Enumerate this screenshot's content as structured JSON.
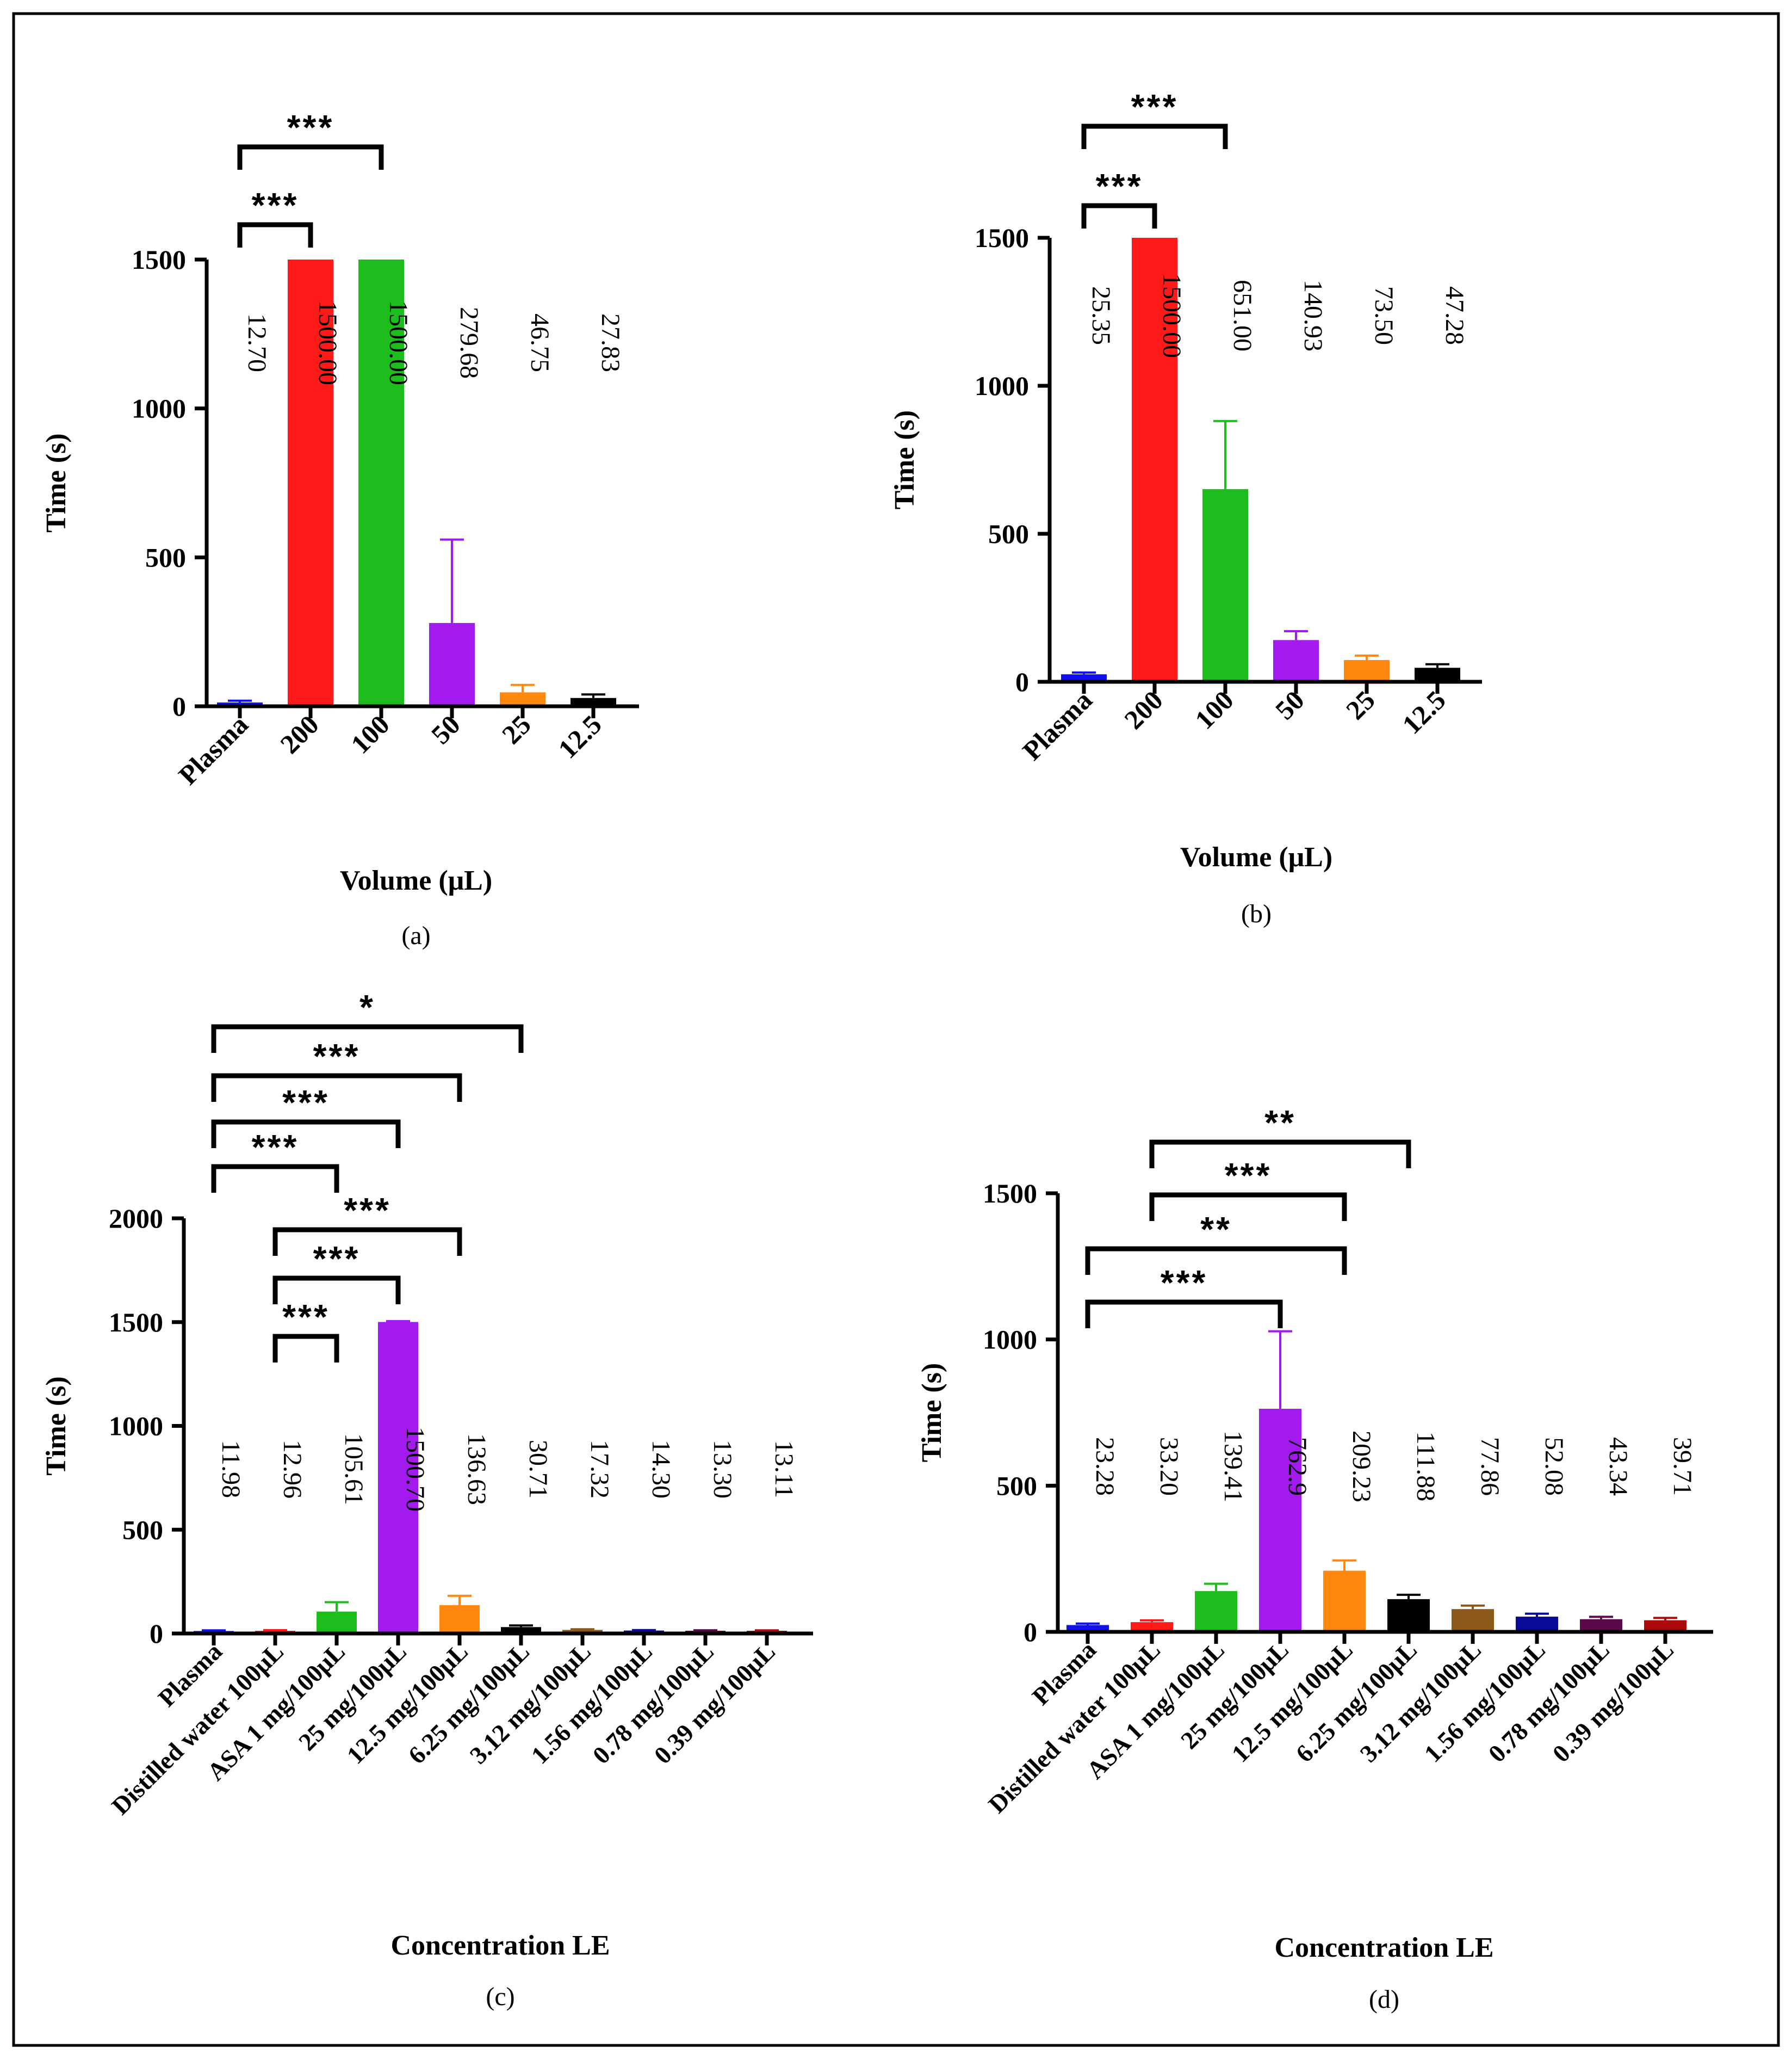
{
  "chart_data": [
    {
      "type": "bar",
      "panel_label": "(a)",
      "xlabel": "Volume (μL)",
      "ylabel": "Time (s)",
      "ylim": [
        0,
        1500
      ],
      "yticks": [
        "0",
        "500",
        "1000",
        "1500"
      ],
      "categories": [
        "Plasma",
        "200",
        "100",
        "50",
        "25",
        "12.5"
      ],
      "values": [
        12.7,
        1500.0,
        1500.0,
        279.68,
        46.75,
        27.83
      ],
      "errors": [
        6,
        0,
        0,
        280,
        25,
        12
      ],
      "value_labels": [
        "12.70",
        "1500.00",
        "1500.00",
        "279.68",
        "46.75",
        "27.83"
      ],
      "colors": [
        "#1010ee",
        "#ff1a1a",
        "#1ebd1e",
        "#a21aee",
        "#ff8811",
        "#000000"
      ],
      "significance": [
        {
          "from": 0,
          "to": 2,
          "label": "***"
        },
        {
          "from": 0,
          "to": 1,
          "label": "***"
        }
      ]
    },
    {
      "type": "bar",
      "panel_label": "(b)",
      "xlabel": "Volume (μL)",
      "ylabel": "Time (s)",
      "ylim": [
        0,
        1500
      ],
      "yticks": [
        "0",
        "500",
        "1000",
        "1500"
      ],
      "categories": [
        "Plasma",
        "200",
        "100",
        "50",
        "25",
        "12.5"
      ],
      "values": [
        25.35,
        1500.0,
        651.0,
        140.93,
        73.5,
        47.28
      ],
      "errors": [
        6,
        0,
        230,
        30,
        15,
        12
      ],
      "value_labels": [
        "25.35",
        "1500.00",
        "651.00",
        "140.93",
        "73.50",
        "47.28"
      ],
      "colors": [
        "#1010ee",
        "#ff1a1a",
        "#1ebd1e",
        "#a21aee",
        "#ff8811",
        "#000000"
      ],
      "significance": [
        {
          "from": 0,
          "to": 2,
          "label": "***"
        },
        {
          "from": 0,
          "to": 1,
          "label": "***"
        }
      ]
    },
    {
      "type": "bar",
      "panel_label": "(c)",
      "xlabel": "Concentration  LE",
      "ylabel": "Time (s)",
      "ylim": [
        0,
        2000
      ],
      "yticks": [
        "0",
        "500",
        "1000",
        "1500",
        "2000"
      ],
      "categories": [
        "Plasma",
        "Distilled water 100μL",
        "ASA 1 mg/100μL",
        "25 mg/100μL",
        "12.5 mg/100μL",
        "6.25 mg/100μL",
        "3.12 mg/100μL",
        "1.56 mg/100μL",
        "0.78 mg/100μL",
        "0.39 mg/100μL"
      ],
      "values": [
        11.98,
        12.96,
        105.61,
        1500.7,
        136.63,
        30.71,
        17.32,
        14.3,
        13.3,
        13.11
      ],
      "errors": [
        3,
        3,
        45,
        4,
        45,
        8,
        3,
        2,
        2,
        2
      ],
      "value_labels": [
        "11.98",
        "12.96",
        "105.61",
        "1500.70",
        "136.63",
        "30.71",
        "17.32",
        "14.30",
        "13.30",
        "13.11"
      ],
      "colors": [
        "#1010ee",
        "#ff1a1a",
        "#1ebd1e",
        "#a21aee",
        "#ff8811",
        "#000000",
        "#8b5a1a",
        "#0a0a99",
        "#5a0a4a",
        "#aa0a0a"
      ],
      "significance": [
        {
          "from": 0,
          "to": 5,
          "label": "*"
        },
        {
          "from": 0,
          "to": 4,
          "label": "***"
        },
        {
          "from": 0,
          "to": 3,
          "label": "***"
        },
        {
          "from": 0,
          "to": 2,
          "label": "***"
        },
        {
          "from": 1,
          "to": 4,
          "label": "***"
        },
        {
          "from": 1,
          "to": 3,
          "label": "***"
        },
        {
          "from": 1,
          "to": 2,
          "label": "***"
        }
      ]
    },
    {
      "type": "bar",
      "panel_label": "(d)",
      "xlabel": "Concentration LE",
      "ylabel": "Time (s)",
      "ylim": [
        0,
        1500
      ],
      "yticks": [
        "0",
        "500",
        "1000",
        "1500"
      ],
      "categories": [
        "Plasma",
        "Distilled water 100μL",
        "ASA 1 mg/100μL",
        "25 mg/100μL",
        "12.5 mg/100μL",
        "6.25 mg/100μL",
        "3.12 mg/100μL",
        "1.56 mg/100μL",
        "0.78 mg/100μL",
        "0.39 mg/100μL"
      ],
      "values": [
        23.28,
        33.2,
        139.41,
        762.9,
        209.23,
        111.88,
        77.86,
        52.08,
        43.34,
        39.71
      ],
      "errors": [
        5,
        6,
        25,
        265,
        35,
        15,
        12,
        10,
        8,
        8
      ],
      "value_labels": [
        "23.28",
        "33.20",
        "139.41",
        "762.9",
        "209.23",
        "111.88",
        "77.86",
        "52.08",
        "43.34",
        "39.71"
      ],
      "colors": [
        "#1010ee",
        "#ff1a1a",
        "#1ebd1e",
        "#a21aee",
        "#ff8811",
        "#000000",
        "#8b5a1a",
        "#0a0a99",
        "#5a0a4a",
        "#aa0a0a"
      ],
      "significance": [
        {
          "from": 1,
          "to": 5,
          "label": "**"
        },
        {
          "from": 1,
          "to": 4,
          "label": "***"
        },
        {
          "from": 0,
          "to": 4,
          "label": "**"
        },
        {
          "from": 0,
          "to": 3,
          "label": "***"
        }
      ]
    }
  ]
}
